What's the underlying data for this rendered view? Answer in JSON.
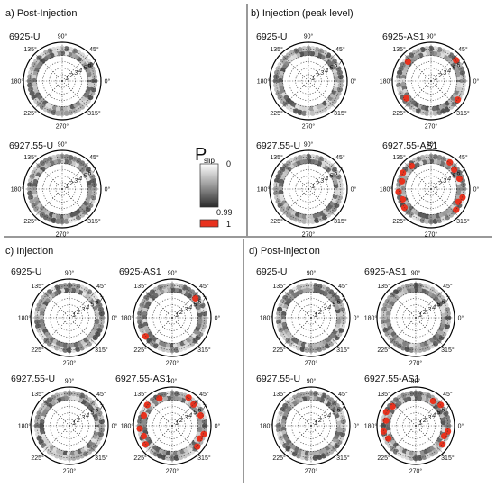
{
  "panels": [
    {
      "id": "a",
      "title": "a)  Post-Injection",
      "plots": [
        {
          "label": "6925-U",
          "red_angles": []
        },
        {
          "label": "6927.55-U",
          "red_angles": []
        }
      ]
    },
    {
      "id": "b",
      "title": "b)  Injection (peak level)",
      "plots": [
        {
          "label": "6925-U",
          "red_angles": []
        },
        {
          "label": "6925-AS1",
          "red_angles": [
            140,
            40,
            215,
            325
          ]
        },
        {
          "label": "6927.55-U",
          "red_angles": []
        },
        {
          "label": "6927.55-AS1",
          "red_angles": [
            130,
            150,
            165,
            185,
            200,
            215,
            40,
            55,
            20,
            320,
            335,
            345
          ]
        }
      ]
    },
    {
      "id": "c",
      "title": "c)  Injection",
      "plots": [
        {
          "label": "6925-U",
          "red_angles": []
        },
        {
          "label": "6925-AS1",
          "red_angles": [
            40,
            215
          ]
        },
        {
          "label": "6927.55-U",
          "red_angles": []
        },
        {
          "label": "6927.55-AS1",
          "red_angles": [
            115,
            140,
            160,
            185,
            200,
            215,
            45,
            60,
            20,
            320,
            335,
            345
          ]
        }
      ]
    },
    {
      "id": "d",
      "title": "d)  Post-injection",
      "plots": [
        {
          "label": "6925-U",
          "red_angles": []
        },
        {
          "label": "6925-AS1",
          "red_angles": []
        },
        {
          "label": "6927.55-U",
          "red_angles": []
        },
        {
          "label": "6927.55-AS1",
          "red_angles": [
            140,
            155,
            170,
            190,
            205,
            40,
            55,
            325,
            340,
            350
          ]
        }
      ]
    }
  ],
  "degree_labels": [
    "90°",
    "45°",
    "0°",
    "315°",
    "270°",
    "225°",
    "180°",
    "135°"
  ],
  "ring_labels": [
    "1",
    "2",
    "3",
    "4",
    "5",
    "6",
    "7"
  ],
  "colorbar": {
    "symbol": "P",
    "subscript": "slip",
    "tick_top": "0",
    "tick_mid": "0.99",
    "tick_bottom": "1",
    "slip_color": "#e8321e"
  }
}
